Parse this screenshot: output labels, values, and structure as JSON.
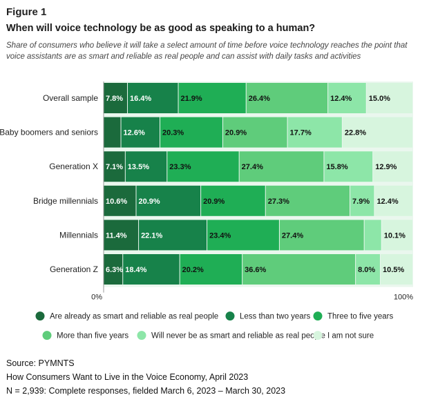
{
  "figure_label": "Figure 1",
  "chart_data": {
    "type": "bar",
    "orientation": "horizontal",
    "stacked": true,
    "title": "When will voice technology be as good as speaking to a human?",
    "subtitle": "Share of consumers who believe it will take a select amount of time before voice technology reaches the point that voice assistants are as smart and reliable as real people and can assist with daily tasks and activities",
    "categories": [
      "Overall sample",
      "Baby boomers and seniors",
      "Generation X",
      "Bridge millennials",
      "Millennials",
      "Generation Z"
    ],
    "series": [
      {
        "name": "Are already as smart and reliable as real people",
        "color": "#1b6a3c",
        "values": [
          7.8,
          5.7,
          7.1,
          10.6,
          11.4,
          6.3
        ],
        "labels": [
          "7.8%",
          "",
          "7.1%",
          "10.6%",
          "11.4%",
          "6.3%"
        ]
      },
      {
        "name": "Less than two years",
        "color": "#17824a",
        "values": [
          16.4,
          12.6,
          13.5,
          20.9,
          22.1,
          18.4
        ],
        "labels": [
          "16.4%",
          "12.6%",
          "13.5%",
          "20.9%",
          "22.1%",
          "18.4%"
        ]
      },
      {
        "name": "Three to five years",
        "color": "#1fae55",
        "values": [
          21.9,
          20.3,
          23.3,
          20.9,
          23.4,
          20.2
        ],
        "labels": [
          "21.9%",
          "20.3%",
          "23.3%",
          "20.9%",
          "23.4%",
          "20.2%"
        ]
      },
      {
        "name": "More than five years",
        "color": "#5fcc7b",
        "values": [
          26.4,
          20.9,
          27.4,
          27.3,
          27.4,
          36.6
        ],
        "labels": [
          "26.4%",
          "20.9%",
          "27.4%",
          "27.3%",
          "27.4%",
          "36.6%"
        ]
      },
      {
        "name": "Will never be as smart and reliable as real people",
        "color": "#8de6a8",
        "values": [
          12.4,
          17.7,
          15.8,
          7.9,
          5.6,
          8.0
        ],
        "labels": [
          "12.4%",
          "17.7%",
          "15.8%",
          "7.9%",
          "",
          "8.0%"
        ]
      },
      {
        "name": "I am not sure",
        "color": "#d7f5de",
        "values": [
          15.0,
          22.8,
          12.9,
          12.4,
          10.1,
          10.5
        ],
        "labels": [
          "15.0%",
          "22.8%",
          "12.9%",
          "12.4%",
          "10.1%",
          "10.5%"
        ]
      }
    ],
    "xlim": [
      0,
      100
    ],
    "x_tick_labels": [
      "0%",
      "100%"
    ],
    "grid": false,
    "legend_position": "bottom"
  },
  "footer": {
    "source": "Source: PYMNTS",
    "report": "How Consumers Want to Live in the Voice Economy, April 2023",
    "sample": "N = 2,939: Complete responses, fielded March 6, 2023 – March 30, 2023"
  }
}
